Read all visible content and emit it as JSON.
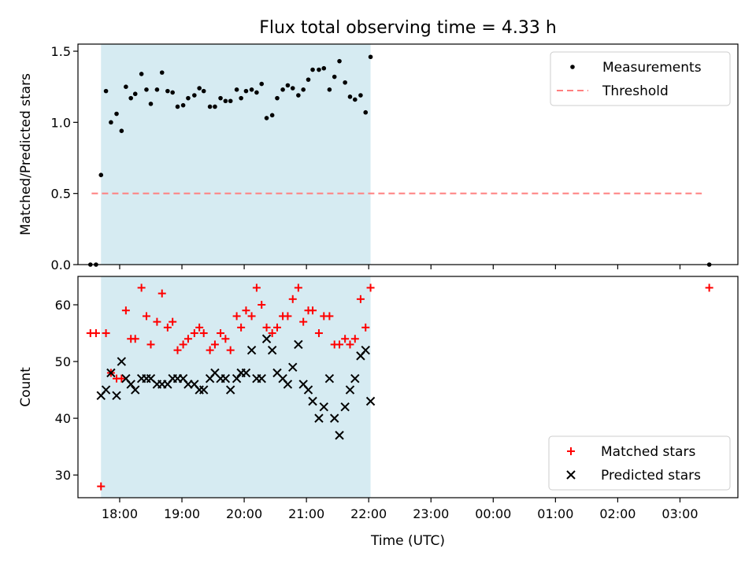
{
  "chart_data": [
    {
      "type": "scatter",
      "title": "Flux total observing time = 4.33 h",
      "xlabel": "",
      "ylabel": "Matched/Predicted stars",
      "ylim": [
        0,
        1.55
      ],
      "yticks": [
        0.0,
        0.5,
        1.0,
        1.5
      ],
      "ytick_labels": [
        "0.0",
        "0.5",
        "1.0",
        "1.5"
      ],
      "xlim": [
        17.33,
        27.93
      ],
      "shaded_span": {
        "x": [
          17.7,
          22.03
        ],
        "color": "#add8e6"
      },
      "legend_position": "upper right",
      "series": [
        {
          "name": "Measurements",
          "marker": "dot",
          "color": "#000000",
          "x": [
            17.53,
            17.62,
            17.7,
            17.78,
            17.86,
            17.95,
            18.03,
            18.1,
            18.18,
            18.25,
            18.35,
            18.43,
            18.5,
            18.6,
            18.68,
            18.77,
            18.85,
            18.93,
            19.02,
            19.1,
            19.2,
            19.28,
            19.35,
            19.45,
            19.53,
            19.62,
            19.7,
            19.78,
            19.88,
            19.95,
            20.03,
            20.12,
            20.2,
            20.28,
            20.36,
            20.45,
            20.53,
            20.62,
            20.7,
            20.78,
            20.87,
            20.95,
            21.03,
            21.1,
            21.2,
            21.28,
            21.37,
            21.45,
            21.53,
            21.62,
            21.7,
            21.78,
            21.87,
            21.95,
            22.03,
            27.47
          ],
          "y": [
            0.0,
            0.0,
            0.63,
            1.22,
            1.0,
            1.06,
            0.94,
            1.25,
            1.17,
            1.2,
            1.34,
            1.23,
            1.13,
            1.23,
            1.35,
            1.22,
            1.21,
            1.11,
            1.12,
            1.17,
            1.19,
            1.24,
            1.22,
            1.11,
            1.11,
            1.17,
            1.15,
            1.15,
            1.23,
            1.17,
            1.22,
            1.23,
            1.21,
            1.27,
            1.03,
            1.05,
            1.17,
            1.23,
            1.26,
            1.24,
            1.19,
            1.23,
            1.3,
            1.37,
            1.37,
            1.38,
            1.23,
            1.32,
            1.43,
            1.28,
            1.18,
            1.16,
            1.19,
            1.07,
            1.46,
            0.0
          ]
        },
        {
          "name": "Threshold",
          "type": "line",
          "style": "dashed",
          "color": "#ff7f7f",
          "x": [
            17.55,
            27.35
          ],
          "y": [
            0.5,
            0.5
          ]
        }
      ]
    },
    {
      "type": "scatter",
      "xlabel": "Time (UTC)",
      "ylabel": "Count",
      "ylim": [
        26,
        65
      ],
      "yticks": [
        30,
        40,
        50,
        60
      ],
      "ytick_labels": [
        "30",
        "40",
        "50",
        "60"
      ],
      "xlim": [
        17.33,
        27.93
      ],
      "xticks": [
        18,
        19,
        20,
        21,
        22,
        23,
        24,
        25,
        26,
        27
      ],
      "xtick_labels": [
        "18:00",
        "19:00",
        "20:00",
        "21:00",
        "22:00",
        "23:00",
        "00:00",
        "01:00",
        "02:00",
        "03:00"
      ],
      "shaded_span": {
        "x": [
          17.7,
          22.03
        ],
        "color": "#add8e6"
      },
      "legend_position": "lower right",
      "series": [
        {
          "name": "Matched stars",
          "marker": "plus",
          "color": "#ff0000",
          "x": [
            17.53,
            17.62,
            17.7,
            17.78,
            17.86,
            17.95,
            18.03,
            18.1,
            18.18,
            18.25,
            18.35,
            18.43,
            18.5,
            18.6,
            18.68,
            18.77,
            18.85,
            18.93,
            19.02,
            19.1,
            19.2,
            19.28,
            19.35,
            19.45,
            19.53,
            19.62,
            19.7,
            19.78,
            19.88,
            19.95,
            20.03,
            20.12,
            20.2,
            20.28,
            20.36,
            20.45,
            20.53,
            20.62,
            20.7,
            20.78,
            20.87,
            20.95,
            21.03,
            21.1,
            21.2,
            21.28,
            21.37,
            21.45,
            21.53,
            21.62,
            21.7,
            21.78,
            21.87,
            21.95,
            22.03,
            27.47
          ],
          "y": [
            55,
            55,
            28,
            55,
            48,
            47,
            47,
            59,
            54,
            54,
            63,
            58,
            53,
            57,
            62,
            56,
            57,
            52,
            53,
            54,
            55,
            56,
            55,
            52,
            53,
            55,
            54,
            52,
            58,
            56,
            59,
            58,
            63,
            60,
            56,
            55,
            56,
            58,
            58,
            61,
            63,
            57,
            59,
            59,
            55,
            58,
            58,
            53,
            53,
            54,
            53,
            54,
            61,
            56,
            63,
            63
          ]
        },
        {
          "name": "Predicted stars",
          "marker": "x",
          "color": "#000000",
          "x": [
            17.7,
            17.78,
            17.86,
            17.95,
            18.03,
            18.1,
            18.18,
            18.25,
            18.35,
            18.43,
            18.5,
            18.6,
            18.68,
            18.77,
            18.85,
            18.93,
            19.02,
            19.1,
            19.2,
            19.28,
            19.35,
            19.45,
            19.53,
            19.62,
            19.7,
            19.78,
            19.88,
            19.95,
            20.03,
            20.12,
            20.2,
            20.28,
            20.36,
            20.45,
            20.53,
            20.62,
            20.7,
            20.78,
            20.87,
            20.95,
            21.03,
            21.1,
            21.2,
            21.28,
            21.37,
            21.45,
            21.53,
            21.62,
            21.7,
            21.78,
            21.87,
            21.95,
            22.03
          ],
          "y": [
            44,
            45,
            48,
            44,
            50,
            47,
            46,
            45,
            47,
            47,
            47,
            46,
            46,
            46,
            47,
            47,
            47,
            46,
            46,
            45,
            45,
            47,
            48,
            47,
            47,
            45,
            47,
            48,
            48,
            52,
            47,
            47,
            54,
            52,
            48,
            47,
            46,
            49,
            53,
            46,
            45,
            43,
            40,
            42,
            47,
            40,
            37,
            42,
            45,
            47,
            51,
            52,
            43
          ]
        }
      ]
    }
  ]
}
